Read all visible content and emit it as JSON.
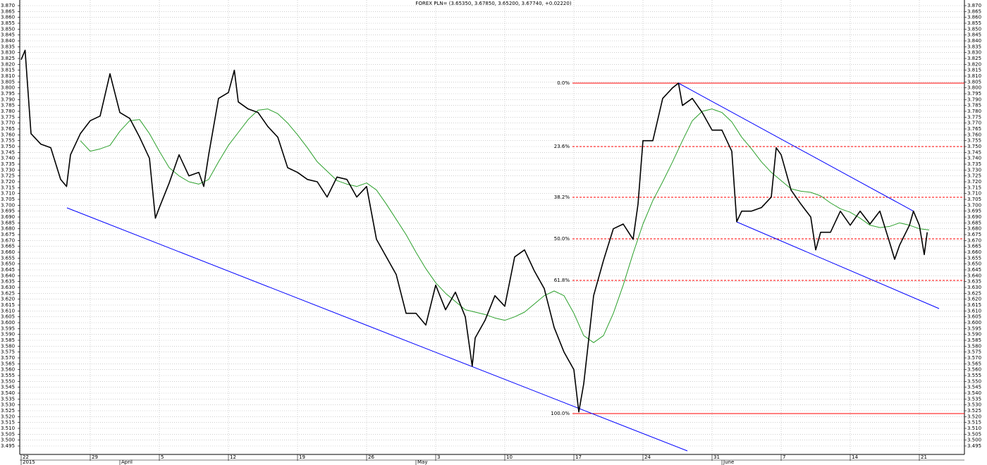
{
  "chart_data": {
    "type": "line",
    "title": "FOREX PLN= (3.65350, 3.67850, 3.65200, 3.67740, +0.02220)",
    "xlim": [
      -0.143,
      95.571
    ],
    "ylim": [
      3.4878,
      3.8748
    ],
    "grid": true,
    "xticks": [
      {
        "value": 0,
        "label": "22"
      },
      {
        "value": 7,
        "label": "29"
      },
      {
        "value": 14,
        "label": "5"
      },
      {
        "value": 21,
        "label": "12"
      },
      {
        "value": 28,
        "label": "19"
      },
      {
        "value": 35,
        "label": "26"
      },
      {
        "value": 42,
        "label": "3"
      },
      {
        "value": 49,
        "label": "10"
      },
      {
        "value": 56,
        "label": "17"
      },
      {
        "value": 63,
        "label": "24"
      },
      {
        "value": 70,
        "label": "31"
      },
      {
        "value": 77,
        "label": "7"
      },
      {
        "value": 84,
        "label": "14"
      },
      {
        "value": 91,
        "label": "21"
      }
    ],
    "xticks_major": [
      {
        "value": 0,
        "label": "2015"
      },
      {
        "value": 10,
        "label": "April"
      },
      {
        "value": 40,
        "label": "May"
      },
      {
        "value": 71,
        "label": "June"
      }
    ],
    "yticks": [
      {
        "value": 3.87,
        "label": "3.870"
      },
      3.865,
      {
        "value": 3.86,
        "label": "3.860"
      },
      3.855,
      {
        "value": 3.85,
        "label": "3.850"
      },
      3.845,
      {
        "value": 3.84,
        "label": "3.840"
      },
      3.835,
      {
        "value": 3.83,
        "label": "3.830"
      },
      3.825,
      {
        "value": 3.82,
        "label": "3.820"
      },
      3.815,
      {
        "value": 3.81,
        "label": "3.810"
      },
      3.805,
      {
        "value": 3.8,
        "label": "3.800"
      },
      3.795,
      {
        "value": 3.79,
        "label": "3.790"
      },
      3.785,
      {
        "value": 3.78,
        "label": "3.780"
      },
      3.775,
      {
        "value": 3.77,
        "label": "3.770"
      },
      3.765,
      {
        "value": 3.76,
        "label": "3.760"
      },
      3.755,
      {
        "value": 3.75,
        "label": "3.750"
      },
      3.745,
      {
        "value": 3.74,
        "label": "3.740"
      },
      3.735,
      {
        "value": 3.73,
        "label": "3.730"
      },
      3.725,
      {
        "value": 3.72,
        "label": "3.720"
      },
      3.715,
      {
        "value": 3.71,
        "label": "3.710"
      },
      3.705,
      {
        "value": 3.7,
        "label": "3.700"
      },
      3.695,
      {
        "value": 3.69,
        "label": "3.690"
      },
      3.685,
      {
        "value": 3.68,
        "label": "3.680"
      },
      3.675,
      {
        "value": 3.67,
        "label": "3.670"
      },
      3.665,
      {
        "value": 3.66,
        "label": "3.660"
      },
      3.655,
      {
        "value": 3.65,
        "label": "3.650"
      },
      3.645,
      {
        "value": 3.64,
        "label": "3.640"
      },
      3.635,
      {
        "value": 3.63,
        "label": "3.630"
      },
      3.625,
      {
        "value": 3.62,
        "label": "3.620"
      },
      3.615,
      {
        "value": 3.61,
        "label": "3.610"
      },
      3.605,
      {
        "value": 3.6,
        "label": "3.600"
      },
      3.595,
      {
        "value": 3.59,
        "label": "3.590"
      },
      3.585,
      {
        "value": 3.58,
        "label": "3.580"
      },
      3.575,
      {
        "value": 3.57,
        "label": "3.570"
      },
      3.565,
      {
        "value": 3.56,
        "label": "3.560"
      },
      3.555,
      {
        "value": 3.55,
        "label": "3.550"
      },
      3.545,
      {
        "value": 3.54,
        "label": "3.540"
      },
      3.535,
      {
        "value": 3.53,
        "label": "3.530"
      },
      3.525,
      {
        "value": 3.52,
        "label": "3.520"
      },
      3.515,
      {
        "value": 3.51,
        "label": "3.510"
      },
      3.505,
      {
        "value": 3.5,
        "label": "3.500"
      },
      3.495
    ],
    "series": [
      {
        "color": "#000000",
        "x": [
          0,
          0.4,
          1,
          2,
          3,
          4,
          4.6,
          5,
          6,
          7,
          8,
          9,
          10,
          11,
          12,
          13,
          13.6,
          14,
          15,
          16,
          17,
          18,
          18.5,
          19,
          20,
          21,
          21.6,
          22,
          23,
          24,
          25,
          26,
          27,
          28,
          29,
          30,
          31,
          32,
          33,
          34,
          35,
          36,
          37,
          38,
          39,
          40,
          41,
          42,
          43,
          44,
          45,
          45.7,
          46,
          47,
          48,
          49,
          50,
          51,
          52,
          53,
          54,
          55,
          56,
          56.5,
          57,
          58,
          59,
          60,
          61,
          62,
          62.5,
          63,
          64,
          65,
          66,
          66.6,
          67,
          68,
          69,
          70,
          71,
          72,
          72.5,
          73,
          74,
          75,
          76,
          76.5,
          77,
          78,
          79,
          80,
          80.5,
          81,
          82,
          83,
          84,
          85,
          86,
          87,
          88,
          88.5,
          89,
          90,
          90.4,
          91,
          91.5,
          91.8
        ],
        "values": [
          3.824,
          3.832,
          3.761,
          3.752,
          3.749,
          3.722,
          3.716,
          3.743,
          3.761,
          3.772,
          3.776,
          3.812,
          3.779,
          3.774,
          3.758,
          3.74,
          3.689,
          3.698,
          3.719,
          3.743,
          3.725,
          3.728,
          3.716,
          3.743,
          3.791,
          3.796,
          3.815,
          3.788,
          3.782,
          3.779,
          3.767,
          3.758,
          3.732,
          3.728,
          3.722,
          3.72,
          3.707,
          3.724,
          3.722,
          3.707,
          3.716,
          3.671,
          3.656,
          3.641,
          3.608,
          3.608,
          3.598,
          3.632,
          3.611,
          3.626,
          3.605,
          3.563,
          3.587,
          3.602,
          3.623,
          3.614,
          3.656,
          3.662,
          3.644,
          3.629,
          3.596,
          3.575,
          3.56,
          3.524,
          3.548,
          3.623,
          3.653,
          3.68,
          3.684,
          3.671,
          3.701,
          3.755,
          3.755,
          3.791,
          3.8,
          3.804,
          3.785,
          3.791,
          3.779,
          3.764,
          3.764,
          3.746,
          3.686,
          3.695,
          3.695,
          3.698,
          3.707,
          3.749,
          3.743,
          3.713,
          3.701,
          3.69,
          3.662,
          3.677,
          3.677,
          3.695,
          3.683,
          3.695,
          3.684,
          3.695,
          3.668,
          3.654,
          3.666,
          3.683,
          3.695,
          3.683,
          3.658,
          3.677
        ]
      },
      {
        "color": "#2ca02c",
        "x": [
          6,
          7,
          8,
          9,
          10,
          11,
          12,
          13,
          14,
          15,
          16,
          17,
          18,
          19,
          20,
          21,
          22,
          23,
          24,
          25,
          26,
          27,
          28,
          29,
          30,
          31,
          32,
          33,
          34,
          35,
          36,
          37,
          38,
          39,
          40,
          41,
          42,
          43,
          44,
          45,
          46,
          47,
          48,
          49,
          50,
          51,
          52,
          53,
          54,
          55,
          56,
          57,
          58,
          59,
          60,
          61,
          62,
          63,
          64,
          65,
          66,
          67,
          68,
          69,
          70,
          71,
          72,
          73,
          74,
          75,
          76,
          77,
          78,
          79,
          80,
          81,
          82,
          83,
          84,
          85,
          86,
          87,
          88,
          89,
          90,
          91,
          92
        ],
        "values": [
          3.755,
          3.746,
          3.748,
          3.751,
          3.763,
          3.772,
          3.773,
          3.761,
          3.746,
          3.732,
          3.725,
          3.72,
          3.718,
          3.722,
          3.737,
          3.751,
          3.762,
          3.773,
          3.781,
          3.782,
          3.778,
          3.77,
          3.76,
          3.749,
          3.737,
          3.729,
          3.721,
          3.718,
          3.716,
          3.719,
          3.713,
          3.701,
          3.688,
          3.675,
          3.66,
          3.646,
          3.634,
          3.625,
          3.618,
          3.611,
          3.609,
          3.607,
          3.604,
          3.602,
          3.605,
          3.609,
          3.616,
          3.623,
          3.627,
          3.623,
          3.608,
          3.589,
          3.583,
          3.589,
          3.608,
          3.632,
          3.659,
          3.684,
          3.704,
          3.72,
          3.737,
          3.755,
          3.772,
          3.78,
          3.782,
          3.779,
          3.771,
          3.758,
          3.748,
          3.737,
          3.728,
          3.721,
          3.714,
          3.712,
          3.711,
          3.708,
          3.702,
          3.697,
          3.694,
          3.689,
          3.683,
          3.681,
          3.682,
          3.685,
          3.683,
          3.68,
          3.679
        ]
      }
    ],
    "fib_color": "#ff0000",
    "fib_levels": [
      {
        "label": "0.0%",
        "value": 3.804
      },
      {
        "label": "23.6%",
        "value": 3.75
      },
      {
        "label": "38.2%",
        "value": 3.7068
      },
      {
        "label": "50.0%",
        "value": 3.6714
      },
      {
        "label": "61.8%",
        "value": 3.636
      },
      {
        "label": "100.0%",
        "value": 3.5226
      }
    ],
    "trend_color": "#0000ff",
    "trendlines": [
      {
        "x": [
          4.64,
          67.5
        ],
        "y": [
          3.6978,
          3.4908
        ]
      },
      {
        "x": [
          66.6,
          90.4
        ],
        "y": [
          3.804,
          3.695
        ]
      },
      {
        "x": [
          72.5,
          93.0
        ],
        "y": [
          3.6858,
          3.612
        ]
      }
    ]
  }
}
